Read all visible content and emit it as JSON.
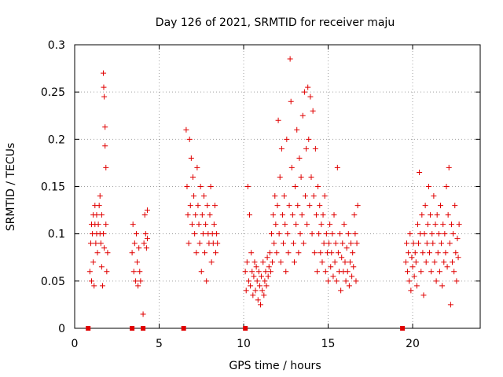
{
  "chart_data": {
    "type": "scatter",
    "title": "Day 126 of 2021, SRMTID for receiver maju",
    "xlabel": "GPS time / hours",
    "ylabel": "SRMTID / TECUs",
    "xlim": [
      0,
      24
    ],
    "ylim": [
      0,
      0.3
    ],
    "x_ticks": [
      {
        "value": 0,
        "label": "0"
      },
      {
        "value": 5,
        "label": "5"
      },
      {
        "value": 10,
        "label": "10"
      },
      {
        "value": 15,
        "label": "15"
      },
      {
        "value": 20,
        "label": "20"
      }
    ],
    "y_ticks": [
      {
        "value": 0,
        "label": "0"
      },
      {
        "value": 0.05,
        "label": "0.05"
      },
      {
        "value": 0.1,
        "label": "0.1"
      },
      {
        "value": 0.15,
        "label": "0.15"
      },
      {
        "value": 0.2,
        "label": "0.2"
      },
      {
        "value": 0.25,
        "label": "0.25"
      },
      {
        "value": 0.3,
        "label": "0.3"
      }
    ],
    "grid": true,
    "marker_color": "#e00000",
    "series": [
      {
        "name": "SRMTID",
        "marker": "plus",
        "points": [
          [
            0.9,
            0.06
          ],
          [
            0.95,
            0.09
          ],
          [
            1.0,
            0.11
          ],
          [
            1.0,
            0.05
          ],
          [
            1.05,
            0.1
          ],
          [
            1.1,
            0.12
          ],
          [
            1.1,
            0.07
          ],
          [
            1.15,
            0.045
          ],
          [
            1.2,
            0.11
          ],
          [
            1.2,
            0.13
          ],
          [
            1.25,
            0.09
          ],
          [
            1.3,
            0.1
          ],
          [
            1.3,
            0.12
          ],
          [
            1.35,
            0.08
          ],
          [
            1.4,
            0.11
          ],
          [
            1.45,
            0.13
          ],
          [
            1.5,
            0.1
          ],
          [
            1.5,
            0.14
          ],
          [
            1.55,
            0.09
          ],
          [
            1.6,
            0.12
          ],
          [
            1.6,
            0.065
          ],
          [
            1.65,
            0.045
          ],
          [
            1.7,
            0.1
          ],
          [
            1.7,
            0.27
          ],
          [
            1.72,
            0.255
          ],
          [
            1.75,
            0.245
          ],
          [
            1.75,
            0.085
          ],
          [
            1.8,
            0.213
          ],
          [
            1.8,
            0.193
          ],
          [
            1.85,
            0.17
          ],
          [
            1.85,
            0.11
          ],
          [
            1.9,
            0.06
          ],
          [
            1.95,
            0.08
          ],
          [
            3.4,
            0.08
          ],
          [
            3.45,
            0.11
          ],
          [
            3.5,
            0.06
          ],
          [
            3.55,
            0.09
          ],
          [
            3.6,
            0.05
          ],
          [
            3.65,
            0.1
          ],
          [
            3.7,
            0.07
          ],
          [
            3.75,
            0.045
          ],
          [
            3.8,
            0.085
          ],
          [
            3.85,
            0.06
          ],
          [
            3.9,
            0.05
          ],
          [
            4.05,
            0.015
          ],
          [
            4.1,
            0.09
          ],
          [
            4.15,
            0.12
          ],
          [
            4.2,
            0.1
          ],
          [
            4.25,
            0.085
          ],
          [
            4.3,
            0.125
          ],
          [
            4.3,
            0.095
          ],
          [
            6.6,
            0.21
          ],
          [
            6.65,
            0.15
          ],
          [
            6.7,
            0.12
          ],
          [
            6.75,
            0.09
          ],
          [
            6.8,
            0.2
          ],
          [
            6.85,
            0.13
          ],
          [
            6.9,
            0.18
          ],
          [
            6.95,
            0.11
          ],
          [
            7.0,
            0.16
          ],
          [
            7.05,
            0.14
          ],
          [
            7.1,
            0.1
          ],
          [
            7.15,
            0.12
          ],
          [
            7.2,
            0.08
          ],
          [
            7.25,
            0.17
          ],
          [
            7.3,
            0.13
          ],
          [
            7.35,
            0.11
          ],
          [
            7.4,
            0.09
          ],
          [
            7.45,
            0.15
          ],
          [
            7.5,
            0.06
          ],
          [
            7.55,
            0.12
          ],
          [
            7.6,
            0.1
          ],
          [
            7.65,
            0.14
          ],
          [
            7.7,
            0.08
          ],
          [
            7.75,
            0.11
          ],
          [
            7.8,
            0.05
          ],
          [
            7.85,
            0.13
          ],
          [
            7.9,
            0.1
          ],
          [
            7.95,
            0.09
          ],
          [
            8.0,
            0.12
          ],
          [
            8.05,
            0.15
          ],
          [
            8.1,
            0.07
          ],
          [
            8.15,
            0.1
          ],
          [
            8.2,
            0.09
          ],
          [
            8.25,
            0.11
          ],
          [
            8.3,
            0.13
          ],
          [
            8.35,
            0.08
          ],
          [
            8.4,
            0.1
          ],
          [
            8.45,
            0.09
          ],
          [
            10.1,
            0.06
          ],
          [
            10.15,
            0.04
          ],
          [
            10.2,
            0.07
          ],
          [
            10.25,
            0.15
          ],
          [
            10.3,
            0.05
          ],
          [
            10.35,
            0.12
          ],
          [
            10.4,
            0.045
          ],
          [
            10.45,
            0.08
          ],
          [
            10.5,
            0.06
          ],
          [
            10.55,
            0.035
          ],
          [
            10.6,
            0.055
          ],
          [
            10.65,
            0.07
          ],
          [
            10.7,
            0.04
          ],
          [
            10.75,
            0.065
          ],
          [
            10.8,
            0.05
          ],
          [
            10.85,
            0.03
          ],
          [
            10.9,
            0.06
          ],
          [
            10.95,
            0.045
          ],
          [
            11.0,
            0.025
          ],
          [
            11.05,
            0.055
          ],
          [
            11.1,
            0.04
          ],
          [
            11.15,
            0.07
          ],
          [
            11.2,
            0.035
          ],
          [
            11.25,
            0.05
          ],
          [
            11.3,
            0.06
          ],
          [
            11.35,
            0.045
          ],
          [
            11.4,
            0.075
          ],
          [
            11.45,
            0.055
          ],
          [
            11.5,
            0.065
          ],
          [
            11.55,
            0.08
          ],
          [
            11.6,
            0.06
          ],
          [
            11.65,
            0.1
          ],
          [
            11.7,
            0.07
          ],
          [
            11.75,
            0.12
          ],
          [
            11.8,
            0.09
          ],
          [
            11.85,
            0.14
          ],
          [
            11.9,
            0.11
          ],
          [
            11.95,
            0.08
          ],
          [
            12.0,
            0.13
          ],
          [
            12.05,
            0.22
          ],
          [
            12.1,
            0.1
          ],
          [
            12.15,
            0.16
          ],
          [
            12.2,
            0.07
          ],
          [
            12.25,
            0.19
          ],
          [
            12.3,
            0.12
          ],
          [
            12.35,
            0.09
          ],
          [
            12.4,
            0.14
          ],
          [
            12.45,
            0.11
          ],
          [
            12.5,
            0.06
          ],
          [
            12.55,
            0.2
          ],
          [
            12.6,
            0.1
          ],
          [
            12.65,
            0.08
          ],
          [
            12.7,
            0.13
          ],
          [
            12.75,
            0.285
          ],
          [
            12.8,
            0.24
          ],
          [
            12.85,
            0.17
          ],
          [
            12.9,
            0.12
          ],
          [
            12.95,
            0.09
          ],
          [
            13.0,
            0.07
          ],
          [
            13.05,
            0.15
          ],
          [
            13.1,
            0.11
          ],
          [
            13.15,
            0.21
          ],
          [
            13.2,
            0.13
          ],
          [
            13.25,
            0.08
          ],
          [
            13.3,
            0.18
          ],
          [
            13.35,
            0.1
          ],
          [
            13.4,
            0.16
          ],
          [
            13.45,
            0.12
          ],
          [
            13.5,
            0.225
          ],
          [
            13.55,
            0.09
          ],
          [
            13.6,
            0.25
          ],
          [
            13.65,
            0.14
          ],
          [
            13.7,
            0.19
          ],
          [
            13.75,
            0.11
          ],
          [
            13.8,
            0.255
          ],
          [
            13.85,
            0.2
          ],
          [
            13.9,
            0.13
          ],
          [
            13.95,
            0.245
          ],
          [
            14.0,
            0.16
          ],
          [
            14.05,
            0.1
          ],
          [
            14.1,
            0.23
          ],
          [
            14.15,
            0.14
          ],
          [
            14.2,
            0.08
          ],
          [
            14.25,
            0.19
          ],
          [
            14.3,
            0.12
          ],
          [
            14.35,
            0.06
          ],
          [
            14.4,
            0.15
          ],
          [
            14.45,
            0.1
          ],
          [
            14.5,
            0.13
          ],
          [
            14.55,
            0.08
          ],
          [
            14.6,
            0.11
          ],
          [
            14.65,
            0.07
          ],
          [
            14.7,
            0.12
          ],
          [
            14.75,
            0.09
          ],
          [
            14.8,
            0.14
          ],
          [
            14.85,
            0.06
          ],
          [
            14.9,
            0.1
          ],
          [
            14.95,
            0.08
          ],
          [
            15.0,
            0.05
          ],
          [
            15.05,
            0.09
          ],
          [
            15.1,
            0.11
          ],
          [
            15.15,
            0.065
          ],
          [
            15.2,
            0.08
          ],
          [
            15.25,
            0.1
          ],
          [
            15.3,
            0.055
          ],
          [
            15.35,
            0.12
          ],
          [
            15.4,
            0.07
          ],
          [
            15.45,
            0.09
          ],
          [
            15.5,
            0.05
          ],
          [
            15.55,
            0.17
          ],
          [
            15.6,
            0.08
          ],
          [
            15.65,
            0.06
          ],
          [
            15.7,
            0.1
          ],
          [
            15.75,
            0.04
          ],
          [
            15.8,
            0.075
          ],
          [
            15.85,
            0.09
          ],
          [
            15.9,
            0.06
          ],
          [
            15.95,
            0.11
          ],
          [
            16.0,
            0.07
          ],
          [
            16.05,
            0.05
          ],
          [
            16.1,
            0.085
          ],
          [
            16.15,
            0.06
          ],
          [
            16.2,
            0.1
          ],
          [
            16.25,
            0.045
          ],
          [
            16.3,
            0.07
          ],
          [
            16.35,
            0.09
          ],
          [
            16.4,
            0.055
          ],
          [
            16.45,
            0.08
          ],
          [
            16.5,
            0.065
          ],
          [
            16.55,
            0.12
          ],
          [
            16.6,
            0.1
          ],
          [
            16.65,
            0.05
          ],
          [
            16.7,
            0.09
          ],
          [
            16.75,
            0.13
          ],
          [
            19.6,
            0.07
          ],
          [
            19.65,
            0.09
          ],
          [
            19.7,
            0.06
          ],
          [
            19.75,
            0.08
          ],
          [
            19.8,
            0.05
          ],
          [
            19.85,
            0.1
          ],
          [
            19.9,
            0.04
          ],
          [
            19.95,
            0.075
          ],
          [
            20.0,
            0.065
          ],
          [
            20.05,
            0.09
          ],
          [
            20.1,
            0.055
          ],
          [
            20.15,
            0.08
          ],
          [
            20.2,
            0.07
          ],
          [
            20.25,
            0.045
          ],
          [
            20.3,
            0.11
          ],
          [
            20.35,
            0.09
          ],
          [
            20.4,
            0.165
          ],
          [
            20.45,
            0.1
          ],
          [
            20.5,
            0.06
          ],
          [
            20.55,
            0.12
          ],
          [
            20.6,
            0.08
          ],
          [
            20.65,
            0.035
          ],
          [
            20.7,
            0.1
          ],
          [
            20.75,
            0.13
          ],
          [
            20.8,
            0.07
          ],
          [
            20.85,
            0.09
          ],
          [
            20.9,
            0.11
          ],
          [
            20.95,
            0.15
          ],
          [
            21.0,
            0.08
          ],
          [
            21.05,
            0.12
          ],
          [
            21.1,
            0.06
          ],
          [
            21.15,
            0.1
          ],
          [
            21.2,
            0.09
          ],
          [
            21.25,
            0.14
          ],
          [
            21.3,
            0.07
          ],
          [
            21.35,
            0.11
          ],
          [
            21.4,
            0.05
          ],
          [
            21.45,
            0.12
          ],
          [
            21.5,
            0.08
          ],
          [
            21.55,
            0.1
          ],
          [
            21.6,
            0.06
          ],
          [
            21.65,
            0.13
          ],
          [
            21.7,
            0.09
          ],
          [
            21.75,
            0.045
          ],
          [
            21.8,
            0.11
          ],
          [
            21.85,
            0.07
          ],
          [
            21.9,
            0.1
          ],
          [
            21.95,
            0.08
          ],
          [
            22.0,
            0.15
          ],
          [
            22.05,
            0.065
          ],
          [
            22.1,
            0.12
          ],
          [
            22.15,
            0.17
          ],
          [
            22.2,
            0.09
          ],
          [
            22.25,
            0.025
          ],
          [
            22.3,
            0.11
          ],
          [
            22.35,
            0.07
          ],
          [
            22.4,
            0.1
          ],
          [
            22.45,
            0.06
          ],
          [
            22.5,
            0.13
          ],
          [
            22.55,
            0.08
          ],
          [
            22.6,
            0.05
          ],
          [
            22.65,
            0.095
          ],
          [
            22.7,
            0.075
          ],
          [
            22.75,
            0.11
          ]
        ]
      },
      {
        "name": "zero markers",
        "marker": "square",
        "points": [
          [
            0.8,
            0
          ],
          [
            3.4,
            0
          ],
          [
            4.05,
            0
          ],
          [
            6.45,
            0
          ],
          [
            10.1,
            0
          ],
          [
            19.4,
            0
          ]
        ]
      }
    ]
  }
}
